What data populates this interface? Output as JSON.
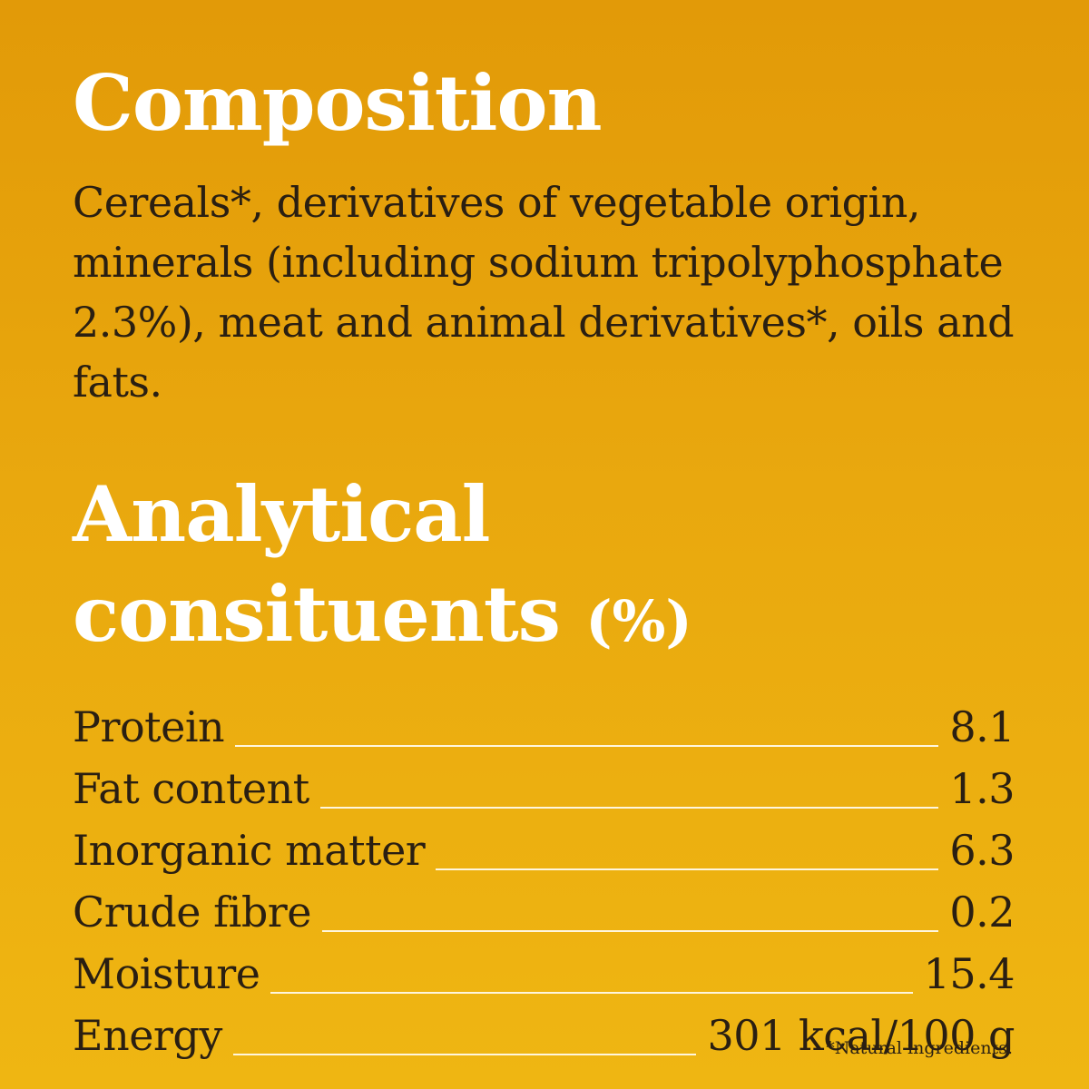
{
  "composition": {
    "title": "Composition",
    "text": "Cereals*, derivatives of vegetable origin, minerals (including sodium tripolyphosphate 2.3%), meat and animal derivatives*, oils and fats."
  },
  "analytical": {
    "title_line1": "Analytical",
    "title_line2": "consituents",
    "unit": "(%)",
    "items": [
      {
        "label": "Protein",
        "value": "8.1"
      },
      {
        "label": "Fat content",
        "value": "1.3"
      },
      {
        "label": "Inorganic matter",
        "value": "6.3"
      },
      {
        "label": "Crude fibre",
        "value": "0.2"
      },
      {
        "label": "Moisture",
        "value": "15.4"
      },
      {
        "label": "Energy",
        "value": "301 kcal/100 g"
      }
    ]
  },
  "footnote": "*Natural ingredients.",
  "colors": {
    "background_top": "#e29a08",
    "background_bottom": "#efb612",
    "heading": "#ffffff",
    "body_text": "#2a1f12",
    "leader_line": "#fff6dd"
  }
}
